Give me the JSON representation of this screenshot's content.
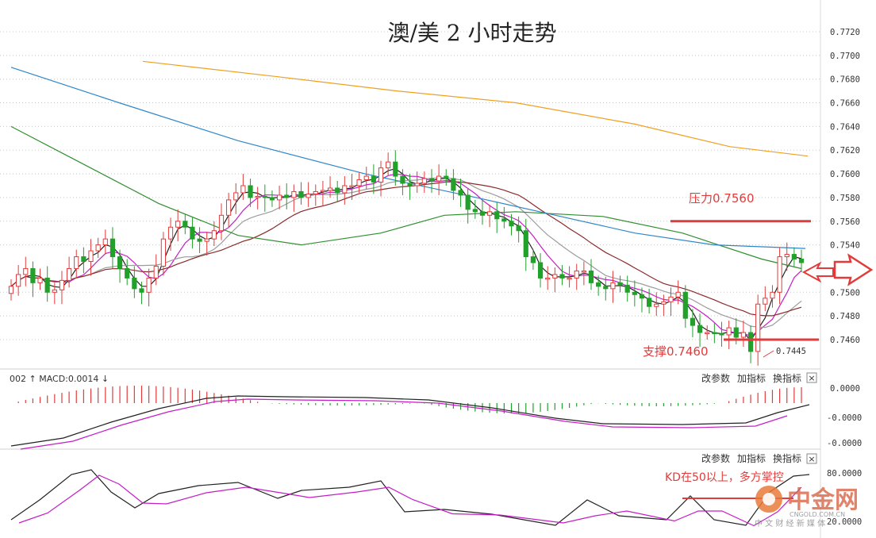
{
  "chart_data": {
    "type": "candlestick",
    "title": "澳/美 2 小时走势",
    "ylim": [
      0.744,
      0.773
    ],
    "y_ticks": [
      "0.7720",
      "0.7700",
      "0.7680",
      "0.7660",
      "0.7640",
      "0.7620",
      "0.7600",
      "0.7580",
      "0.7560",
      "0.7540",
      "0.7500",
      "0.7480",
      "0.7460"
    ],
    "annotations": {
      "resistance": {
        "label": "压力0.7560",
        "value": 0.756
      },
      "support": {
        "label": "支撑0.7460",
        "value": 0.746
      },
      "low": {
        "label": "0.7445",
        "value": 0.7445
      }
    },
    "close": [
      0.7505,
      0.7515,
      0.752,
      0.7508,
      0.7512,
      0.75,
      0.7502,
      0.751,
      0.752,
      0.753,
      0.7526,
      0.7535,
      0.754,
      0.7545,
      0.753,
      0.752,
      0.7512,
      0.7503,
      0.75,
      0.7512,
      0.7522,
      0.7545,
      0.7555,
      0.756,
      0.7555,
      0.7545,
      0.7543,
      0.7545,
      0.7552,
      0.7565,
      0.7578,
      0.7584,
      0.759,
      0.758,
      0.7581,
      0.758,
      0.7578,
      0.7582,
      0.758,
      0.7585,
      0.758,
      0.7583,
      0.7585,
      0.7586,
      0.7588,
      0.7584,
      0.759,
      0.759,
      0.7595,
      0.7598,
      0.7593,
      0.7605,
      0.761,
      0.7598,
      0.7592,
      0.759,
      0.7592,
      0.7596,
      0.7594,
      0.7598,
      0.7596,
      0.7586,
      0.7582,
      0.757,
      0.7568,
      0.7565,
      0.7568,
      0.7562,
      0.756,
      0.7556,
      0.7552,
      0.753,
      0.7525,
      0.7512,
      0.7512,
      0.7515,
      0.7512,
      0.7512,
      0.7518,
      0.7518,
      0.7508,
      0.7505,
      0.7503,
      0.7508,
      0.7506,
      0.75,
      0.7498,
      0.7495,
      0.7488,
      0.749,
      0.7492,
      0.7496,
      0.75,
      0.7478,
      0.7472,
      0.7466,
      0.7466,
      0.7465,
      0.7464,
      0.747,
      0.7462,
      0.7466,
      0.745,
      0.749,
      0.7495,
      0.75,
      0.753,
      0.7532,
      0.7528,
      0.7525
    ]
  },
  "macd_panel": {
    "label": "002 ↑ MACD:0.0014 ↓",
    "ticks": [
      "0.0000",
      "-0.0000",
      "-0.0000"
    ]
  },
  "kd_panel": {
    "ticks": [
      "80.0000",
      "20.0000"
    ],
    "annotation": "KD在50以上，多方掌控"
  },
  "buttons": {
    "edit_params": "改参数",
    "add_indicator": "加指标",
    "switch_indicator": "换指标",
    "close": "×"
  },
  "watermark": {
    "brand": "中金网",
    "site": "CNGOLD.COM.CN",
    "slogan": "中 文 财 经 新 媒 体"
  },
  "colors": {
    "up": "#e23b3b",
    "down": "#21a12a",
    "ma5": "#222222",
    "ma10": "#c41ec6",
    "ma20": "#9c9c9c",
    "ma30": "#8b2a2a",
    "ma60": "#2f8f2f",
    "ma120": "#2e86c9",
    "ma250": "#f0a020",
    "annotation": "#e23b3b"
  }
}
